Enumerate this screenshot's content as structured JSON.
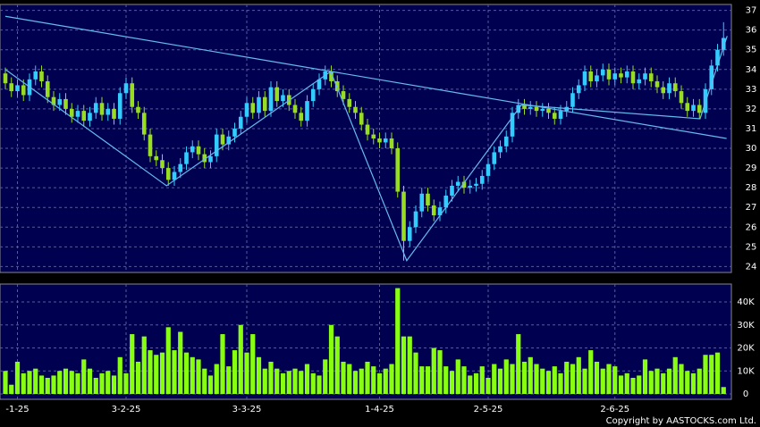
{
  "chart_data": {
    "type": "candlestick",
    "copyright": "Copyright by AASTOCKS.com Ltd.",
    "categories": [
      null,
      null,
      "-1-25",
      null,
      null,
      null,
      null,
      null,
      null,
      null,
      null,
      null,
      null,
      null,
      null,
      null,
      null,
      null,
      null,
      null,
      "3-2-25",
      null,
      null,
      null,
      null,
      null,
      null,
      null,
      null,
      null,
      null,
      null,
      null,
      null,
      null,
      null,
      null,
      null,
      null,
      null,
      "3-3-25",
      null,
      null,
      null,
      null,
      null,
      null,
      null,
      null,
      null,
      null,
      null,
      null,
      null,
      null,
      null,
      null,
      null,
      null,
      null,
      null,
      null,
      "1-4-25",
      null,
      null,
      null,
      null,
      null,
      null,
      null,
      null,
      null,
      null,
      null,
      null,
      null,
      null,
      null,
      null,
      null,
      "2-5-25",
      null,
      null,
      null,
      null,
      null,
      null,
      null,
      null,
      null,
      null,
      null,
      null,
      null,
      null,
      null,
      null,
      null,
      null,
      null,
      null,
      "2-6-25",
      null,
      null,
      null,
      null,
      null,
      null,
      null,
      null,
      null,
      null,
      null,
      null,
      null,
      null,
      null,
      null,
      null,
      null
    ],
    "open": [
      33.8,
      33.3,
      32.9,
      33.2,
      32.7,
      33.5,
      33.9,
      33.4,
      32.6,
      32.2,
      32.5,
      32.0,
      31.6,
      31.9,
      31.4,
      31.8,
      32.3,
      31.7,
      32.0,
      31.5,
      32.8,
      33.3,
      32.1,
      31.8,
      30.7,
      29.6,
      29.4,
      29.0,
      28.4,
      28.8,
      29.2,
      29.8,
      30.1,
      29.7,
      29.3,
      29.6,
      30.7,
      30.2,
      30.6,
      31.0,
      31.6,
      32.3,
      31.8,
      32.6,
      31.9,
      33.1,
      32.4,
      32.7,
      32.2,
      31.8,
      31.4,
      32.4,
      33.0,
      33.5,
      33.9,
      33.4,
      32.9,
      32.5,
      32.1,
      31.8,
      31.2,
      30.7,
      30.5,
      30.3,
      30.5,
      30.0,
      27.8,
      25.3,
      26.0,
      26.8,
      27.7,
      27.1,
      26.6,
      27.0,
      27.6,
      28.1,
      28.3,
      28.0,
      28.1,
      28.2,
      28.6,
      29.2,
      29.8,
      30.1,
      30.6,
      31.8,
      32.2,
      32.0,
      32.1,
      31.9,
      32.0,
      31.8,
      31.5,
      31.9,
      32.1,
      32.8,
      33.2,
      33.9,
      33.4,
      33.7,
      34.0,
      33.5,
      33.8,
      33.6,
      33.9,
      33.3,
      33.5,
      33.8,
      33.4,
      33.1,
      32.8,
      33.3,
      32.9,
      32.3,
      31.9,
      32.2,
      31.8,
      33.0,
      34.2,
      35.0
    ],
    "high": [
      34.1,
      33.6,
      33.5,
      33.5,
      33.8,
      34.2,
      34.2,
      33.7,
      32.9,
      32.8,
      32.8,
      32.3,
      32.2,
      32.2,
      32.1,
      32.6,
      32.6,
      32.3,
      32.3,
      33.1,
      33.6,
      33.6,
      32.4,
      32.1,
      31.0,
      29.9,
      29.7,
      29.3,
      29.1,
      29.5,
      30.1,
      30.4,
      30.4,
      30.0,
      29.9,
      31.0,
      31.0,
      30.9,
      31.3,
      31.9,
      32.6,
      32.6,
      32.9,
      32.9,
      33.4,
      33.4,
      33.0,
      33.0,
      32.5,
      32.1,
      32.7,
      33.3,
      33.8,
      34.2,
      34.2,
      33.7,
      33.2,
      32.8,
      32.4,
      32.1,
      31.5,
      31.0,
      30.8,
      30.8,
      30.8,
      30.3,
      28.1,
      26.3,
      27.1,
      28.0,
      28.0,
      27.4,
      27.3,
      27.9,
      28.4,
      28.6,
      28.6,
      28.4,
      28.5,
      28.9,
      29.5,
      30.1,
      30.4,
      30.9,
      32.1,
      32.5,
      32.5,
      32.4,
      32.4,
      32.3,
      32.3,
      32.1,
      32.2,
      32.4,
      33.1,
      33.5,
      34.2,
      34.2,
      34.0,
      34.3,
      34.3,
      34.1,
      34.1,
      34.2,
      34.2,
      33.8,
      34.1,
      34.1,
      33.7,
      33.4,
      33.6,
      33.6,
      33.2,
      32.6,
      32.5,
      32.5,
      33.3,
      34.5,
      35.3,
      36.4
    ],
    "low": [
      33.0,
      32.6,
      32.6,
      32.4,
      32.4,
      33.2,
      33.1,
      32.3,
      31.9,
      31.9,
      31.7,
      31.3,
      31.3,
      31.1,
      31.1,
      31.5,
      31.4,
      31.4,
      31.2,
      31.2,
      32.5,
      31.8,
      31.5,
      30.4,
      29.3,
      29.1,
      28.7,
      28.1,
      28.1,
      28.5,
      28.9,
      29.5,
      29.4,
      29.0,
      29.0,
      29.3,
      29.9,
      29.9,
      30.3,
      30.7,
      31.3,
      31.5,
      31.5,
      31.6,
      31.6,
      32.1,
      32.1,
      31.9,
      31.5,
      31.1,
      31.1,
      32.1,
      32.7,
      33.2,
      33.1,
      32.6,
      32.2,
      31.8,
      31.5,
      30.9,
      30.4,
      30.2,
      30.0,
      30.0,
      29.7,
      27.5,
      24.3,
      25.0,
      25.7,
      26.5,
      26.8,
      26.3,
      26.3,
      26.7,
      27.3,
      27.8,
      27.7,
      27.7,
      27.8,
      27.9,
      28.3,
      28.9,
      29.5,
      29.8,
      30.3,
      31.5,
      31.7,
      31.7,
      31.6,
      31.6,
      31.5,
      31.2,
      31.2,
      31.6,
      31.8,
      32.5,
      32.9,
      33.1,
      33.1,
      33.4,
      33.2,
      33.2,
      33.3,
      33.3,
      33.0,
      33.0,
      33.2,
      33.1,
      32.8,
      32.5,
      32.5,
      32.6,
      32.0,
      31.6,
      31.6,
      31.5,
      31.5,
      32.7,
      33.9,
      34.7
    ],
    "close": [
      33.3,
      32.9,
      33.2,
      32.7,
      33.5,
      33.9,
      33.4,
      32.6,
      32.2,
      32.5,
      32.0,
      31.6,
      31.9,
      31.4,
      31.8,
      32.3,
      31.7,
      32.0,
      31.5,
      32.8,
      33.3,
      32.1,
      31.8,
      30.7,
      29.6,
      29.4,
      29.0,
      28.4,
      28.8,
      29.2,
      29.8,
      30.1,
      29.7,
      29.3,
      29.6,
      30.7,
      30.2,
      30.6,
      31.0,
      31.6,
      32.3,
      31.8,
      32.6,
      31.9,
      33.1,
      32.4,
      32.7,
      32.2,
      31.8,
      31.4,
      32.4,
      33.0,
      33.5,
      33.9,
      33.4,
      32.9,
      32.5,
      32.1,
      31.8,
      31.2,
      30.7,
      30.5,
      30.3,
      30.5,
      30.0,
      27.8,
      25.3,
      26.0,
      26.8,
      27.7,
      27.1,
      26.6,
      27.0,
      27.6,
      28.1,
      28.3,
      28.0,
      28.1,
      28.2,
      28.6,
      29.2,
      29.8,
      30.1,
      30.6,
      31.8,
      32.2,
      32.0,
      32.1,
      31.9,
      32.0,
      31.8,
      31.5,
      31.9,
      32.1,
      32.8,
      33.2,
      33.9,
      33.4,
      33.7,
      34.0,
      33.5,
      33.8,
      33.6,
      33.9,
      33.3,
      33.5,
      33.8,
      33.4,
      33.1,
      32.8,
      33.3,
      32.9,
      32.3,
      31.9,
      32.2,
      31.8,
      33.0,
      34.2,
      35.0,
      35.6
    ],
    "volume": [
      10000,
      4000,
      14000,
      9000,
      10000,
      11000,
      8000,
      7000,
      8000,
      10000,
      11000,
      10000,
      9000,
      15000,
      11000,
      7000,
      9000,
      10000,
      8000,
      16000,
      9000,
      26000,
      14000,
      25000,
      19000,
      17000,
      18000,
      29000,
      19000,
      27000,
      18000,
      16000,
      15000,
      11000,
      8000,
      13000,
      26000,
      12000,
      19000,
      30000,
      18000,
      26000,
      16000,
      11000,
      14000,
      11000,
      9000,
      10000,
      11000,
      10000,
      13000,
      9000,
      8000,
      15000,
      30000,
      25000,
      14000,
      13000,
      10000,
      11000,
      14000,
      12000,
      9000,
      11000,
      13000,
      46000,
      25000,
      25000,
      18000,
      12000,
      12000,
      20000,
      19000,
      12000,
      10000,
      15000,
      12000,
      8000,
      9000,
      12000,
      7000,
      13000,
      11000,
      15000,
      13000,
      26000,
      14000,
      16000,
      13000,
      11000,
      10000,
      12000,
      9000,
      14000,
      13000,
      16000,
      11000,
      19000,
      14000,
      11000,
      13000,
      12000,
      8000,
      9000,
      7000,
      8000,
      15000,
      10000,
      11000,
      9000,
      11000,
      16000,
      13000,
      10000,
      9000,
      11000,
      17000,
      17000,
      18000,
      3000
    ],
    "up_color": "#33ccff",
    "down_color": "#99dd22",
    "volume_color": "#88ff11",
    "line_color": "#66bbee",
    "trendlines": [
      [
        [
          0,
          36.7
        ],
        [
          119.5,
          30.5
        ]
      ],
      [
        [
          0,
          34.0
        ],
        [
          26.7,
          28.1
        ],
        [
          53.9,
          33.9
        ],
        [
          66.5,
          24.3
        ],
        [
          85.5,
          32.2
        ],
        [
          115.1,
          31.5
        ],
        [
          119.6,
          35.7
        ]
      ]
    ],
    "ylim": [
      23.7,
      37.3
    ],
    "yticks": [
      24,
      25,
      26,
      27,
      28,
      29,
      30,
      31,
      32,
      33,
      34,
      35,
      36,
      37
    ],
    "vlim": [
      0,
      48000
    ],
    "vticks": [
      0,
      {
        "value": 10000,
        "label": "10K"
      },
      {
        "value": 20000,
        "label": "20K"
      },
      {
        "value": 30000,
        "label": "30K"
      },
      {
        "value": 40000,
        "label": "40K"
      }
    ],
    "grid": true
  }
}
